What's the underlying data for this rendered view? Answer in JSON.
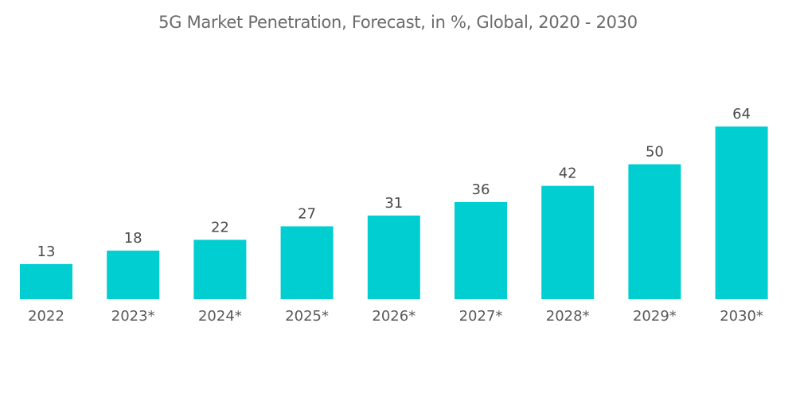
{
  "chart_data": {
    "type": "bar",
    "title": "5G Market Penetration, Forecast, in %, Global, 2020 - 2030",
    "categories": [
      "2022",
      "2023*",
      "2024*",
      "2025*",
      "2026*",
      "2027*",
      "2028*",
      "2029*",
      "2030*"
    ],
    "values": [
      13,
      18,
      22,
      27,
      31,
      36,
      42,
      50,
      64
    ],
    "xlabel": "",
    "ylabel": "",
    "ylim": [
      0,
      64
    ],
    "grid": false,
    "legend": "none",
    "bar_color": "#00CED1",
    "data_labels": true
  }
}
